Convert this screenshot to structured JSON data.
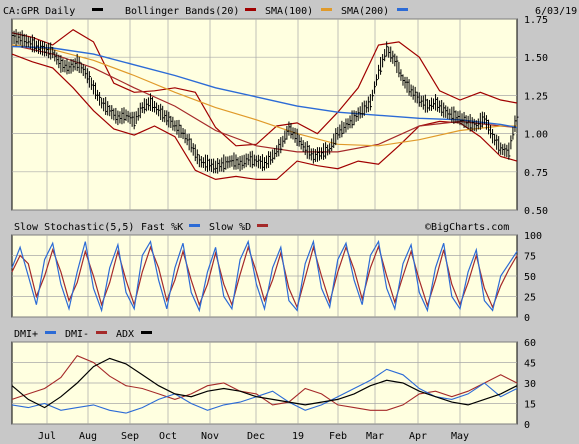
{
  "colors": {
    "background": "#c8c8c8",
    "panel": "#ffffe0",
    "grid": "#a8a8a8",
    "price_bars": "#000000",
    "bollinger": "#a00000",
    "sma100": "#a52a2a",
    "sma200_orange": "#e09a2a",
    "sma200_blue": "#2c6bd6",
    "fast_k": "#2c6bd6",
    "slow_d": "#a52a2a",
    "dmi_plus": "#2c6bd6",
    "dmi_minus": "#a52a2a",
    "adx": "#000000"
  },
  "chart_data": [
    {
      "type": "ohlc",
      "title": "CA:GPR Daily",
      "date": "6/03/19",
      "legend": [
        {
          "label": "CA:GPR Daily",
          "color": "#000000"
        },
        {
          "label": "Bollinger Bands(20)",
          "color": "#a00000"
        },
        {
          "label": "SMA(100)",
          "color": "#a52a2a"
        },
        {
          "label": "SMA(200)",
          "color": "#2c6bd6"
        }
      ],
      "y_ticks": [
        "1.75",
        "1.50",
        "1.25",
        "1.00",
        "0.75",
        "0.50"
      ],
      "ylim": [
        0.5,
        1.75
      ],
      "grid": true,
      "x_months": [
        "Jul",
        "Aug",
        "Sep",
        "Oct",
        "Nov",
        "Dec",
        "19",
        "Feb",
        "Mar",
        "Apr",
        "May"
      ],
      "close": {
        "x": [
          0,
          4,
          8,
          12,
          16,
          20,
          24,
          28,
          32,
          36,
          40,
          44,
          48,
          52,
          56,
          60,
          64,
          68,
          72,
          76,
          80,
          84,
          88,
          92,
          96,
          100,
          104,
          108,
          112,
          116,
          120,
          124,
          128,
          132,
          136,
          140,
          144,
          148,
          152,
          156,
          160,
          164,
          168,
          172,
          176,
          180,
          184,
          188,
          192,
          196,
          200,
          204,
          208,
          212,
          216,
          220,
          224,
          228,
          232,
          236,
          240,
          244,
          248
        ],
        "y": [
          1.63,
          1.62,
          1.6,
          1.57,
          1.55,
          1.53,
          1.45,
          1.43,
          1.46,
          1.4,
          1.3,
          1.2,
          1.15,
          1.1,
          1.12,
          1.08,
          1.17,
          1.2,
          1.15,
          1.1,
          1.05,
          1.0,
          0.92,
          0.82,
          0.8,
          0.78,
          0.8,
          0.82,
          0.8,
          0.83,
          0.82,
          0.8,
          0.85,
          0.92,
          1.03,
          0.97,
          0.9,
          0.85,
          0.87,
          0.9,
          1.0,
          1.05,
          1.1,
          1.15,
          1.2,
          1.4,
          1.55,
          1.48,
          1.35,
          1.28,
          1.22,
          1.18,
          1.2,
          1.15,
          1.12,
          1.1,
          1.07,
          1.05,
          1.1,
          0.98,
          0.9,
          0.88,
          1.12
        ]
      },
      "bollinger_upper": {
        "x": [
          0,
          10,
          20,
          30,
          40,
          50,
          60,
          70,
          80,
          90,
          100,
          110,
          120,
          130,
          140,
          150,
          160,
          170,
          180,
          190,
          200,
          210,
          220,
          230,
          240,
          248
        ],
        "y": [
          1.66,
          1.63,
          1.58,
          1.68,
          1.6,
          1.33,
          1.27,
          1.28,
          1.3,
          1.27,
          1.04,
          0.92,
          0.93,
          1.05,
          1.07,
          1.0,
          1.14,
          1.3,
          1.58,
          1.6,
          1.5,
          1.28,
          1.22,
          1.27,
          1.22,
          1.2
        ]
      },
      "bollinger_lower": {
        "x": [
          0,
          10,
          20,
          30,
          40,
          50,
          60,
          70,
          80,
          90,
          100,
          110,
          120,
          130,
          140,
          150,
          160,
          170,
          180,
          190,
          200,
          210,
          220,
          230,
          240,
          248
        ],
        "y": [
          1.52,
          1.47,
          1.43,
          1.3,
          1.15,
          1.03,
          0.99,
          1.05,
          0.98,
          0.76,
          0.7,
          0.72,
          0.7,
          0.7,
          0.82,
          0.79,
          0.77,
          0.82,
          0.8,
          0.92,
          1.05,
          1.08,
          1.07,
          0.98,
          0.85,
          0.82
        ]
      },
      "sma100": {
        "x": [
          0,
          20,
          40,
          60,
          80,
          100,
          120,
          140,
          160,
          180,
          200,
          220,
          240,
          248
        ],
        "y": [
          1.58,
          1.52,
          1.43,
          1.3,
          1.18,
          1.02,
          0.92,
          0.88,
          0.88,
          0.93,
          1.05,
          1.08,
          1.05,
          1.04
        ]
      },
      "sma200_orange": {
        "x": [
          0,
          20,
          40,
          60,
          80,
          100,
          120,
          140,
          160,
          180,
          200,
          220,
          240,
          248
        ],
        "y": [
          1.58,
          1.55,
          1.48,
          1.38,
          1.27,
          1.17,
          1.09,
          1.0,
          0.93,
          0.92,
          0.96,
          1.02,
          1.05,
          1.05
        ]
      },
      "sma200_blue": {
        "x": [
          0,
          20,
          40,
          60,
          80,
          100,
          120,
          140,
          160,
          180,
          200,
          220,
          240,
          248
        ],
        "y": [
          1.57,
          1.56,
          1.52,
          1.45,
          1.38,
          1.3,
          1.24,
          1.18,
          1.14,
          1.12,
          1.1,
          1.09,
          1.06,
          1.04
        ]
      }
    },
    {
      "type": "line",
      "title": "Slow Stochastic(5,5)",
      "legend": [
        {
          "label": "Fast %K",
          "color": "#2c6bd6"
        },
        {
          "label": "Slow %D",
          "color": "#a52a2a"
        }
      ],
      "watermark": "©BigCharts.com",
      "y_ticks": [
        "100",
        "75",
        "50",
        "25",
        "0"
      ],
      "ylim": [
        0,
        100
      ],
      "grid": true,
      "series": [
        {
          "name": "Fast %K",
          "x": [
            0,
            4,
            8,
            12,
            16,
            20,
            24,
            28,
            32,
            36,
            40,
            44,
            48,
            52,
            56,
            60,
            64,
            68,
            72,
            76,
            80,
            84,
            88,
            92,
            96,
            100,
            104,
            108,
            112,
            116,
            120,
            124,
            128,
            132,
            136,
            140,
            144,
            148,
            152,
            156,
            160,
            164,
            168,
            172,
            176,
            180,
            184,
            188,
            192,
            196,
            200,
            204,
            208,
            212,
            216,
            220,
            224,
            228,
            232,
            236,
            240,
            244,
            248
          ],
          "y": [
            60,
            85,
            50,
            15,
            70,
            90,
            40,
            10,
            55,
            92,
            35,
            8,
            60,
            88,
            30,
            10,
            75,
            92,
            45,
            10,
            60,
            90,
            30,
            8,
            55,
            85,
            25,
            10,
            70,
            92,
            40,
            10,
            60,
            85,
            20,
            8,
            65,
            92,
            35,
            12,
            70,
            90,
            45,
            15,
            75,
            92,
            35,
            10,
            65,
            88,
            30,
            8,
            60,
            90,
            25,
            10,
            55,
            82,
            20,
            8,
            50,
            65,
            80
          ]
        },
        {
          "name": "Slow %D",
          "x": [
            0,
            4,
            8,
            12,
            16,
            20,
            24,
            28,
            32,
            36,
            40,
            44,
            48,
            52,
            56,
            60,
            64,
            68,
            72,
            76,
            80,
            84,
            88,
            92,
            96,
            100,
            104,
            108,
            112,
            116,
            120,
            124,
            128,
            132,
            136,
            140,
            144,
            148,
            152,
            156,
            160,
            164,
            168,
            172,
            176,
            180,
            184,
            188,
            192,
            196,
            200,
            204,
            208,
            212,
            216,
            220,
            224,
            228,
            232,
            236,
            240,
            244,
            248
          ],
          "y": [
            55,
            75,
            65,
            25,
            50,
            82,
            55,
            20,
            42,
            80,
            50,
            15,
            42,
            80,
            45,
            15,
            55,
            85,
            60,
            20,
            45,
            80,
            45,
            15,
            40,
            78,
            40,
            15,
            52,
            85,
            55,
            20,
            45,
            78,
            35,
            12,
            48,
            85,
            50,
            18,
            55,
            85,
            58,
            22,
            60,
            86,
            50,
            18,
            50,
            80,
            45,
            14,
            45,
            82,
            40,
            15,
            42,
            75,
            35,
            12,
            38,
            58,
            75
          ]
        }
      ]
    },
    {
      "type": "line",
      "title": "",
      "legend": [
        {
          "label": "DMI+",
          "color": "#2c6bd6"
        },
        {
          "label": "DMI-",
          "color": "#a52a2a"
        },
        {
          "label": "ADX",
          "color": "#000000"
        }
      ],
      "y_ticks": [
        "60",
        "45",
        "30",
        "15",
        "0"
      ],
      "ylim": [
        0,
        60
      ],
      "grid": true,
      "series": [
        {
          "name": "DMI+",
          "x": [
            0,
            8,
            16,
            24,
            32,
            40,
            48,
            56,
            64,
            72,
            80,
            88,
            96,
            104,
            112,
            120,
            128,
            136,
            144,
            152,
            160,
            168,
            176,
            184,
            192,
            200,
            208,
            216,
            224,
            232,
            240,
            248
          ],
          "y": [
            14,
            12,
            15,
            10,
            12,
            14,
            10,
            8,
            12,
            18,
            22,
            15,
            10,
            14,
            16,
            20,
            24,
            16,
            10,
            14,
            20,
            26,
            32,
            40,
            36,
            26,
            20,
            18,
            22,
            30,
            20,
            26
          ]
        },
        {
          "name": "DMI-",
          "x": [
            0,
            8,
            16,
            24,
            32,
            40,
            48,
            56,
            64,
            72,
            80,
            88,
            96,
            104,
            112,
            120,
            128,
            136,
            144,
            152,
            160,
            168,
            176,
            184,
            192,
            200,
            208,
            216,
            224,
            232,
            240,
            248
          ],
          "y": [
            18,
            22,
            26,
            34,
            50,
            45,
            35,
            28,
            26,
            22,
            18,
            22,
            28,
            30,
            24,
            22,
            14,
            16,
            26,
            22,
            14,
            12,
            10,
            10,
            14,
            22,
            24,
            20,
            24,
            30,
            36,
            30
          ]
        },
        {
          "name": "ADX",
          "x": [
            0,
            8,
            16,
            24,
            32,
            40,
            48,
            56,
            64,
            72,
            80,
            88,
            96,
            104,
            112,
            120,
            128,
            136,
            144,
            152,
            160,
            168,
            176,
            184,
            192,
            200,
            208,
            216,
            224,
            232,
            240,
            248
          ],
          "y": [
            28,
            18,
            12,
            20,
            30,
            42,
            48,
            44,
            36,
            28,
            22,
            20,
            24,
            26,
            24,
            20,
            18,
            16,
            14,
            16,
            18,
            22,
            28,
            32,
            30,
            24,
            20,
            16,
            14,
            18,
            22,
            28
          ]
        }
      ]
    }
  ]
}
